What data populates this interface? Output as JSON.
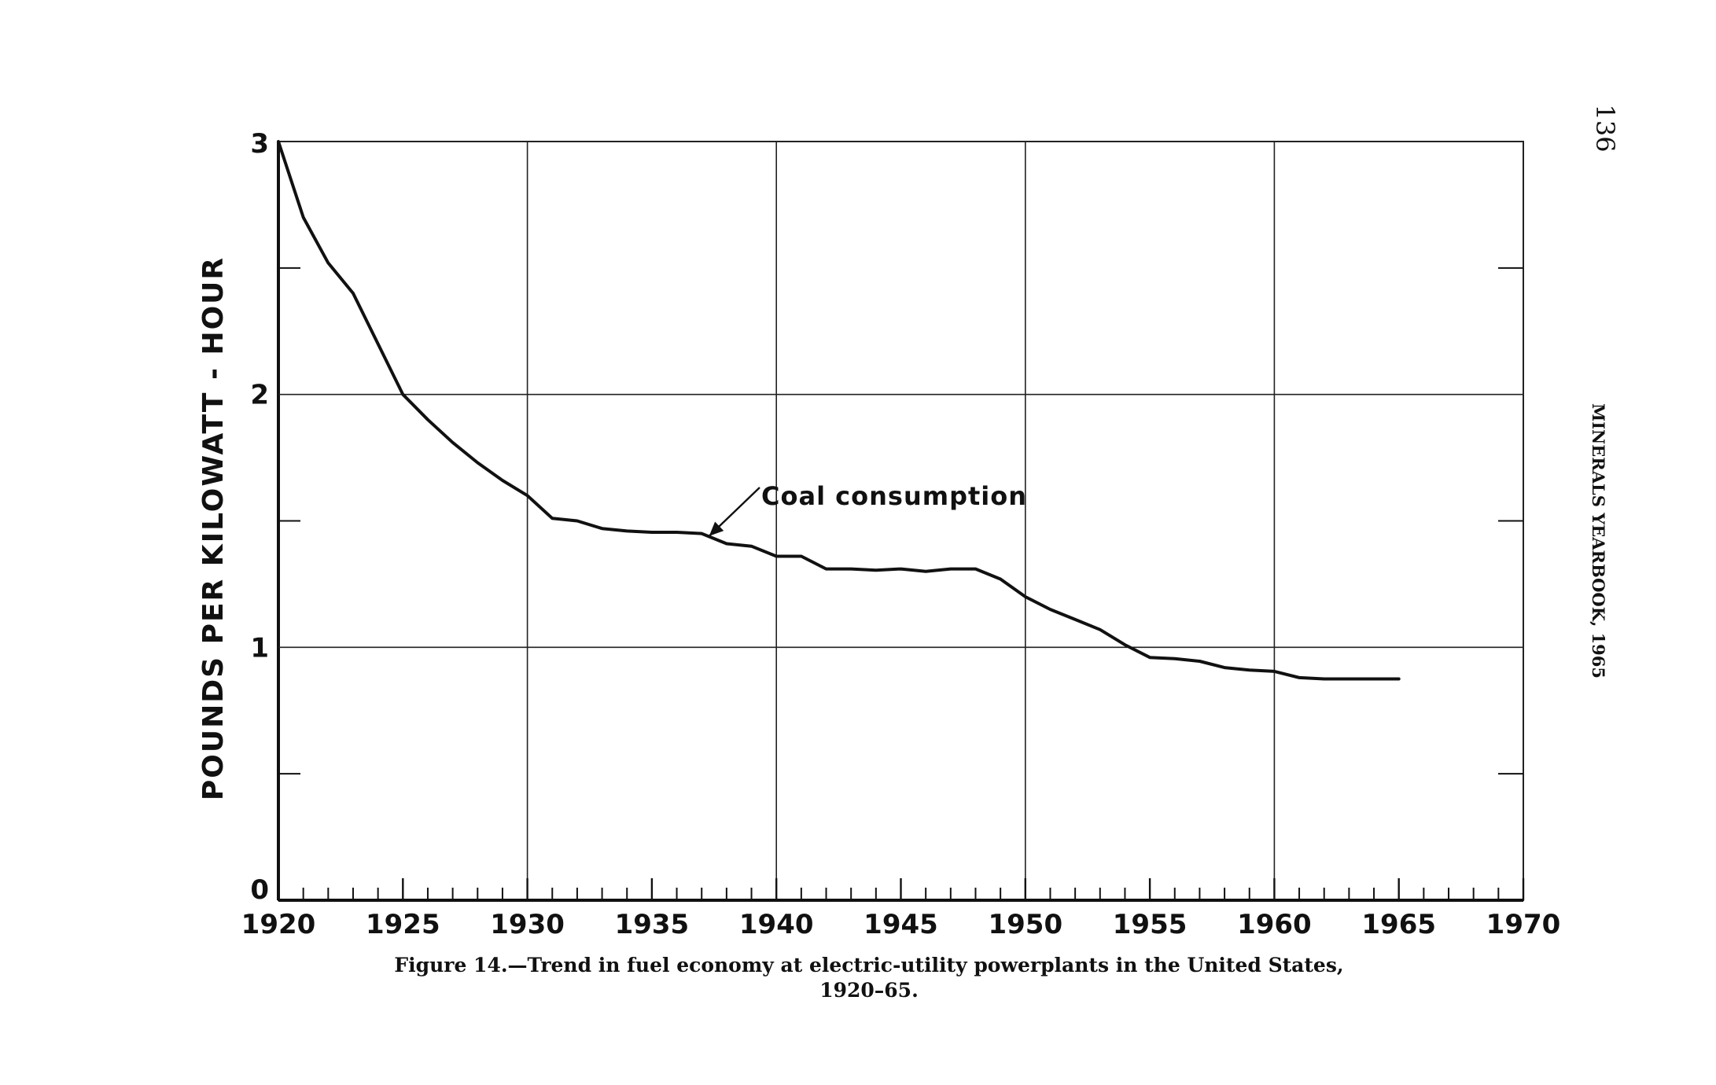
{
  "page": {
    "page_number": "136",
    "running_header": "MINERALS YEARBOOK, 1965",
    "caption_line1": "Figure 14.—Trend in fuel economy at electric-utility powerplants in the United States,",
    "caption_line2": "1920–65."
  },
  "chart_data": {
    "type": "line",
    "title": "",
    "xlabel": "",
    "ylabel": "POUNDS PER KILOWATT - HOUR",
    "xlim": [
      1920,
      1970
    ],
    "ylim": [
      0,
      3
    ],
    "x_ticks": [
      1920,
      1925,
      1930,
      1935,
      1940,
      1945,
      1950,
      1955,
      1960,
      1965,
      1970
    ],
    "x_tick_labels": [
      "1920",
      "1925",
      "1930",
      "1935",
      "1940",
      "1945",
      "1950",
      "1955",
      "1960",
      "1965",
      "1970"
    ],
    "y_ticks": [
      0,
      1,
      2,
      3
    ],
    "y_tick_labels": [
      "0",
      "1",
      "2",
      "3"
    ],
    "y_minor_ticks": [
      0.5,
      1.5,
      2.5
    ],
    "grid": true,
    "series": [
      {
        "name": "Coal consumption",
        "color": "#111111",
        "x": [
          1920,
          1921,
          1922,
          1923,
          1924,
          1925,
          1926,
          1927,
          1928,
          1929,
          1930,
          1931,
          1932,
          1933,
          1934,
          1935,
          1936,
          1937,
          1938,
          1939,
          1940,
          1941,
          1942,
          1943,
          1944,
          1945,
          1946,
          1947,
          1948,
          1949,
          1950,
          1951,
          1952,
          1953,
          1954,
          1955,
          1956,
          1957,
          1958,
          1959,
          1960,
          1961,
          1962,
          1963,
          1964,
          1965
        ],
        "y": [
          3.0,
          2.7,
          2.52,
          2.4,
          2.2,
          2.0,
          1.9,
          1.81,
          1.73,
          1.66,
          1.6,
          1.51,
          1.5,
          1.47,
          1.46,
          1.455,
          1.455,
          1.45,
          1.41,
          1.4,
          1.36,
          1.36,
          1.31,
          1.31,
          1.305,
          1.31,
          1.3,
          1.31,
          1.31,
          1.27,
          1.2,
          1.15,
          1.11,
          1.07,
          1.01,
          0.96,
          0.955,
          0.945,
          0.92,
          0.91,
          0.905,
          0.88,
          0.875,
          0.875,
          0.875,
          0.875
        ]
      }
    ],
    "annotations": [
      {
        "text": "Coal consumption",
        "points_to": {
          "x": 1937.3,
          "y": 1.44
        }
      }
    ]
  }
}
